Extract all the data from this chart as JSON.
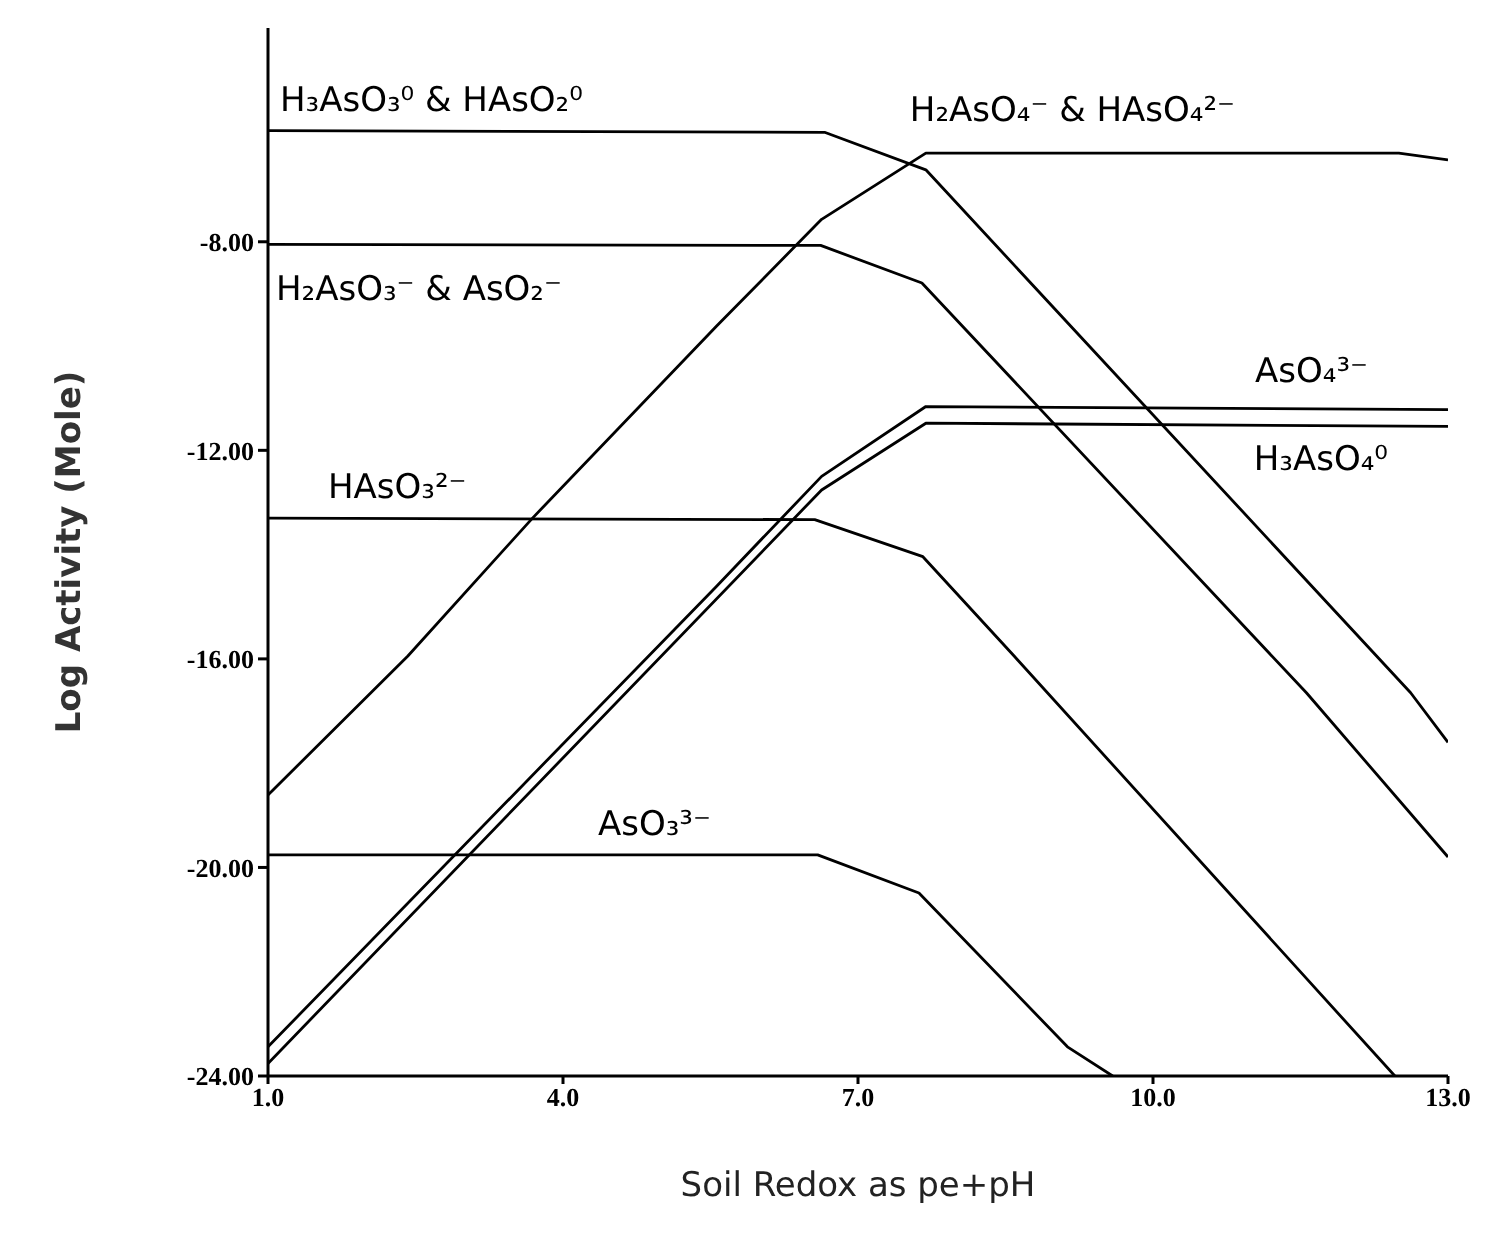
{
  "chart_data": {
    "type": "line",
    "xlabel": "Soil Redox as pe+pH",
    "ylabel": "Log Activity (Mole)",
    "xlim": [
      1,
      13
    ],
    "xticks": [
      {
        "value": 1,
        "label": "1.0"
      },
      {
        "value": 4,
        "label": "4.0"
      },
      {
        "value": 7,
        "label": "7.0"
      },
      {
        "value": 10,
        "label": "10.0"
      },
      {
        "value": 13,
        "label": "13.0"
      }
    ],
    "ylim": [
      -24,
      -3.9
    ],
    "yticks": [
      {
        "value": -8,
        "label": "-8.00"
      },
      {
        "value": -12,
        "label": "-12.00"
      },
      {
        "value": -16,
        "label": "-16.00"
      },
      {
        "value": -20,
        "label": "-20.00"
      },
      {
        "value": -24,
        "label": "-24.00"
      }
    ],
    "series": [
      {
        "name": "H₃AsO₃⁰ & HAsO₂⁰",
        "color": "#000000",
        "x": [
          1,
          6.66,
          7.69,
          12.62,
          13
        ],
        "values": [
          -5.87,
          -5.9,
          -6.62,
          -16.65,
          -17.6
        ]
      },
      {
        "name": "H₂AsO₄⁻ & HAsO₄²⁻",
        "color": "#000000",
        "x": [
          1,
          2.42,
          3.69,
          5.56,
          6.63,
          7.69,
          12.5,
          13
        ],
        "values": [
          -18.61,
          -15.95,
          -13.3,
          -9.62,
          -7.57,
          -6.3,
          -6.3,
          -6.43
        ]
      },
      {
        "name": "H₂AsO₃⁻ & AsO₂⁻",
        "color": "#000000",
        "x": [
          1,
          6.62,
          7.65,
          11.56,
          13
        ],
        "values": [
          -8.05,
          -8.07,
          -8.79,
          -16.65,
          -19.8
        ]
      },
      {
        "name": "AsO₄³⁻",
        "color": "#000000",
        "x": [
          1,
          5.56,
          6.63,
          7.69,
          13
        ],
        "values": [
          -23.44,
          -14.61,
          -12.5,
          -11.16,
          -11.22
        ]
      },
      {
        "name": "H₃AsO₄⁰",
        "color": "#000000",
        "x": [
          1,
          6.63,
          7.69,
          13
        ],
        "values": [
          -23.76,
          -12.76,
          -11.48,
          -11.54
        ]
      },
      {
        "name": "HAsO₃²⁻",
        "color": "#000000",
        "x": [
          1,
          6.56,
          7.66,
          8.59,
          12.46
        ],
        "values": [
          -13.3,
          -13.33,
          -14.04,
          -15.95,
          -24
        ]
      },
      {
        "name": "AsO₃³⁻",
        "color": "#000000",
        "x": [
          1,
          6.59,
          7.62,
          9.13,
          9.59
        ],
        "values": [
          -19.76,
          -19.76,
          -20.49,
          -23.44,
          -24
        ]
      }
    ]
  }
}
